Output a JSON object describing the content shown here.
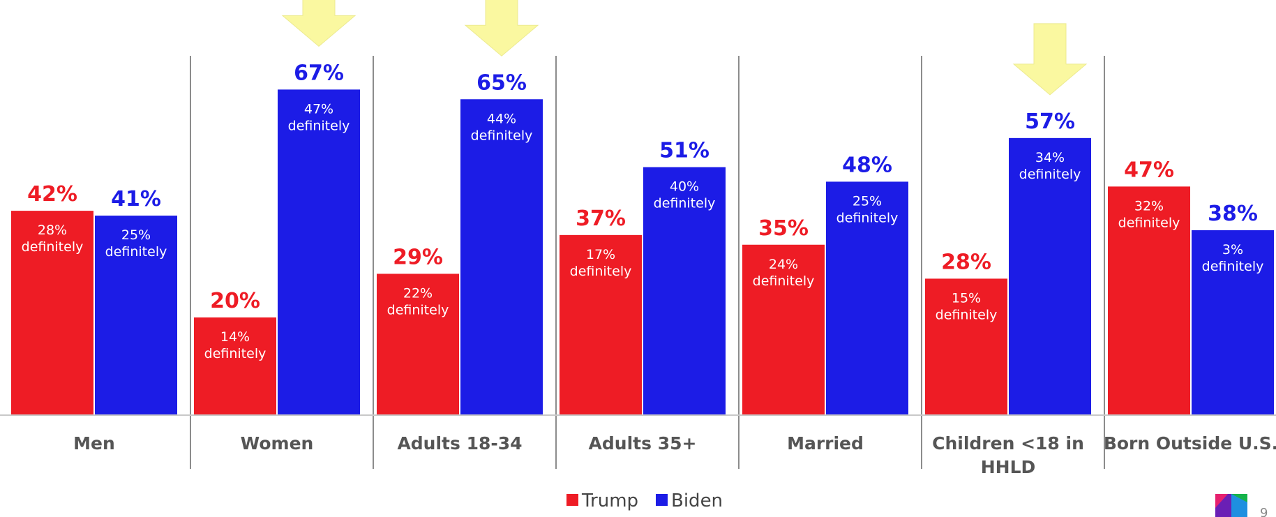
{
  "chart_data": {
    "type": "bar",
    "categories": [
      [
        "Men"
      ],
      [
        "Women"
      ],
      [
        "Adults 18-34"
      ],
      [
        "Adults 35+"
      ],
      [
        "Married"
      ],
      [
        "Children <18 in",
        "HHLD"
      ],
      [
        "Born Outside U.S."
      ]
    ],
    "series": [
      {
        "name": "Trump",
        "color": "#ee1c25",
        "values": [
          42,
          20,
          29,
          37,
          35,
          28,
          47
        ],
        "value_labels": [
          "42%",
          "20%",
          "29%",
          "37%",
          "35%",
          "28%",
          "47%"
        ],
        "definitely_labels": [
          "28%",
          "14%",
          "22%",
          "17%",
          "24%",
          "15%",
          "32%"
        ]
      },
      {
        "name": "Biden",
        "color": "#1c1ce6",
        "values": [
          41,
          67,
          65,
          51,
          48,
          57,
          38
        ],
        "value_labels": [
          "41%",
          "67%",
          "65%",
          "51%",
          "48%",
          "57%",
          "38%"
        ],
        "definitely_labels": [
          "25%",
          "47%",
          "44%",
          "40%",
          "25%",
          "34%",
          "3%"
        ]
      }
    ],
    "definitely_word": "definitely",
    "highlight_categories": [
      1,
      2,
      5
    ],
    "highlight_color": "#faf8a0",
    "ylim": [
      0,
      80
    ],
    "legend_position": "bottom-center",
    "grid": false
  },
  "branding": {
    "logo_icon": "univision-logo-icon",
    "page_number": "9"
  }
}
